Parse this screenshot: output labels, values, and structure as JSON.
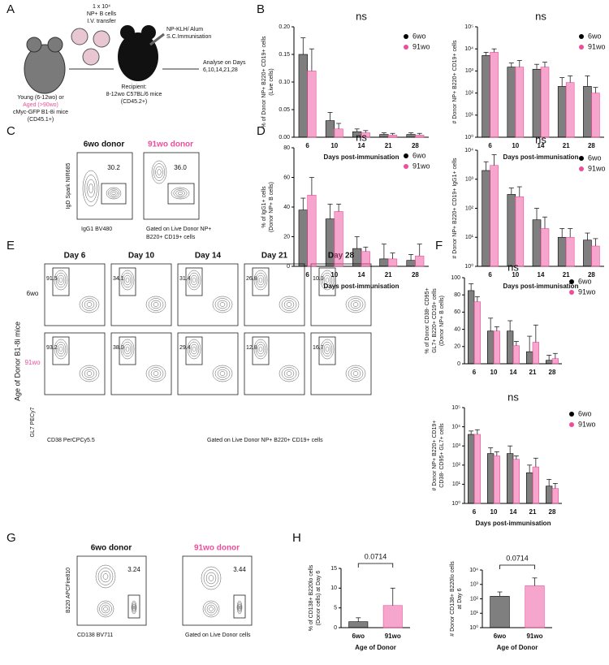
{
  "figure": {
    "panel_letters": [
      "A",
      "B",
      "C",
      "D",
      "E",
      "F",
      "G",
      "H"
    ],
    "schematic": {
      "transfer": [
        "1 x 10⁴",
        "NP+ B cells",
        "I.V. transfer"
      ],
      "immunisation": [
        "NP-KLH/ Alum",
        "S.C.Immunisation"
      ],
      "analyse": [
        "Analyse on Days",
        "6,10,14,21,28"
      ],
      "donor": [
        "Young (6-12wo) or",
        "Aged (>90wo)",
        "cMyc-GFP B1-8i mice",
        "(CD45.1+)"
      ],
      "recipient": [
        "Recipient:",
        "8-12wo C57BL/6 mice",
        "(CD45.2+)"
      ]
    },
    "flow_c": {
      "titles": [
        "6wo donor",
        "91wo donor"
      ],
      "gates": [
        "30.2",
        "36.0"
      ],
      "y_axis": "IgD Spark NIR685",
      "x_axis": "IgG1 BV480",
      "gating": [
        "Gated on Live Donor NP+",
        "B220+ CD19+ cells"
      ]
    },
    "flow_e": {
      "days": [
        "Day 6",
        "Day 10",
        "Day 14",
        "Day 21",
        "Day 28"
      ],
      "rows": [
        "6wo",
        "91wo"
      ],
      "gates": [
        [
          "91.5",
          "34.1",
          "31.4",
          "26.8",
          "10.0"
        ],
        [
          "93.2",
          "38.0",
          "29.4",
          "12.8",
          "16.7"
        ]
      ],
      "row_title": "Age of Donor B1-8i mice",
      "y_axis": "GL7 PECy7",
      "x_axis": "CD38 PerCPCy5.5",
      "gating": "Gated on Live Donor NP+ B220+ CD19+ cells"
    },
    "flow_g": {
      "titles": [
        "6wo donor",
        "91wo donor"
      ],
      "gates": [
        "3.24",
        "3.44"
      ],
      "y_axis": "B220 APCFire810",
      "x_axis": "CD138 BV711",
      "gating": "Gated on Live Donor cells"
    }
  },
  "chart_data": [
    {
      "type": "bar",
      "title": "ns",
      "ylabel": [
        "% of Donor NP+ B220+ CD19+ cells",
        "(Live cells)"
      ],
      "xlabel": "Days post-immunisation",
      "categories": [
        "6",
        "10",
        "14",
        "21",
        "28"
      ],
      "ylim": [
        0,
        0.2
      ],
      "yticks": [
        {
          "value": 0,
          "label": "0.00"
        },
        0.05,
        {
          "value": 0.1,
          "label": "0.10"
        },
        0.15,
        {
          "value": 0.2,
          "label": "0.20"
        }
      ],
      "series": [
        {
          "name": "6wo",
          "color": "#000000",
          "values": [
            0.15,
            0.03,
            0.01,
            0.005,
            0.005
          ],
          "errors": [
            0.03,
            0.015,
            0.005,
            0.003,
            0.003
          ]
        },
        {
          "name": "91wo",
          "color": "#ee4d9b",
          "values": [
            0.12,
            0.015,
            0.008,
            0.004,
            0.004
          ],
          "errors": [
            0.04,
            0.01,
            0.004,
            0.003,
            0.003
          ]
        }
      ]
    },
    {
      "type": "bar",
      "title": "ns",
      "ylabel": [
        "# Donor NP+ B220+ CD19+ cells"
      ],
      "xlabel": "Days post-immunisation",
      "log": true,
      "categories": [
        "6",
        "10",
        "14",
        "21",
        "28"
      ],
      "ylim": [
        1,
        100000
      ],
      "yticks": [
        {
          "value": 1,
          "label": "10⁰"
        },
        {
          "value": 10,
          "label": "10¹"
        },
        {
          "value": 100,
          "label": "10²"
        },
        {
          "value": 1000,
          "label": "10³"
        },
        {
          "value": 10000,
          "label": "10⁴"
        },
        {
          "value": 100000,
          "label": "10⁵"
        }
      ],
      "series": [
        {
          "name": "6wo",
          "color": "#000000",
          "values": [
            5000,
            1500,
            1200,
            200,
            200
          ],
          "errors": [
            2000,
            800,
            800,
            300,
            400
          ]
        },
        {
          "name": "91wo",
          "color": "#ee4d9b",
          "values": [
            7000,
            1500,
            1500,
            300,
            100
          ],
          "errors": [
            3000,
            1500,
            1000,
            300,
            80
          ]
        }
      ]
    },
    {
      "type": "bar",
      "title": "ns",
      "ylabel": [
        "% of IgG1+ cells",
        "(Donor NP+ B cells)"
      ],
      "xlabel": "Days post-immunisation",
      "categories": [
        "6",
        "10",
        "14",
        "21",
        "28"
      ],
      "ylim": [
        0,
        80
      ],
      "yticks": [
        0,
        20,
        40,
        60,
        80
      ],
      "series": [
        {
          "name": "6wo",
          "color": "#000000",
          "values": [
            38,
            32,
            12,
            5,
            4
          ],
          "errors": [
            8,
            10,
            8,
            10,
            4
          ]
        },
        {
          "name": "91wo",
          "color": "#ee4d9b",
          "values": [
            48,
            37,
            10,
            5,
            7
          ],
          "errors": [
            12,
            5,
            3,
            4,
            8
          ]
        }
      ]
    },
    {
      "type": "bar",
      "title": "ns",
      "ylabel": [
        "# Donor NP+ B220+ CD19+ IgG1+ cells"
      ],
      "xlabel": "Days post-immunisation",
      "log": true,
      "categories": [
        "6",
        "10",
        "14",
        "21",
        "28"
      ],
      "ylim": [
        1,
        10000
      ],
      "yticks": [
        {
          "value": 1,
          "label": "10⁰"
        },
        {
          "value": 10,
          "label": "10¹"
        },
        {
          "value": 100,
          "label": "10²"
        },
        {
          "value": 1000,
          "label": "10³"
        },
        {
          "value": 10000,
          "label": "10⁴"
        }
      ],
      "series": [
        {
          "name": "6wo",
          "color": "#000000",
          "values": [
            2000,
            300,
            40,
            10,
            8
          ],
          "errors": [
            2000,
            200,
            60,
            10,
            6
          ]
        },
        {
          "name": "91wo",
          "color": "#ee4d9b",
          "values": [
            3000,
            250,
            20,
            10,
            5
          ],
          "errors": [
            4000,
            300,
            30,
            10,
            4
          ]
        }
      ]
    },
    {
      "type": "bar",
      "title": "ns",
      "ylabel": [
        "% of Donor CD38- CD95+",
        "GL7+ B220+ CD19+ cells",
        "(Donor NP+ B cells)"
      ],
      "xlabel": "",
      "categories": [
        "6",
        "10",
        "14",
        "21",
        "28"
      ],
      "ylim": [
        0,
        100
      ],
      "yticks": [
        0,
        20,
        40,
        60,
        80,
        100
      ],
      "series": [
        {
          "name": "6wo",
          "color": "#000000",
          "values": [
            85,
            38,
            38,
            14,
            4
          ],
          "errors": [
            8,
            15,
            12,
            18,
            6
          ]
        },
        {
          "name": "91wo",
          "color": "#ee4d9b",
          "values": [
            72,
            38,
            21,
            25,
            6
          ],
          "errors": [
            6,
            5,
            5,
            20,
            6
          ]
        }
      ]
    },
    {
      "type": "bar",
      "title": "ns",
      "ylabel": [
        "# Donor NP+ B220+ CD19+",
        "CD38- CD95+ GL7+ cells"
      ],
      "xlabel": "Days post-immunisation",
      "log": true,
      "categories": [
        "6",
        "10",
        "14",
        "21",
        "28"
      ],
      "ylim": [
        1,
        100000
      ],
      "yticks": [
        {
          "value": 1,
          "label": "10⁰"
        },
        {
          "value": 10,
          "label": "10¹"
        },
        {
          "value": 100,
          "label": "10²"
        },
        {
          "value": 1000,
          "label": "10³"
        },
        {
          "value": 10000,
          "label": "10⁴"
        },
        {
          "value": 100000,
          "label": "10⁵"
        }
      ],
      "series": [
        {
          "name": "6wo",
          "color": "#000000",
          "values": [
            4000,
            400,
            400,
            40,
            8
          ],
          "errors": [
            2000,
            400,
            600,
            60,
            10
          ]
        },
        {
          "name": "91wo",
          "color": "#ee4d9b",
          "values": [
            4000,
            300,
            200,
            80,
            6
          ],
          "errors": [
            3000,
            200,
            100,
            150,
            5
          ]
        }
      ]
    },
    {
      "type": "bar",
      "ylabel": [
        "% of CD138+ B220lo cells",
        "(Donor cells) at Day 6"
      ],
      "xlabel": "Age of Donor",
      "annotation": "0.0714",
      "categories": [
        "6wo",
        "91wo"
      ],
      "ylim": [
        0,
        15
      ],
      "yticks": [
        0,
        5,
        10,
        15
      ],
      "values": [
        1.5,
        5.6
      ],
      "errors": [
        1,
        4.4
      ],
      "colors": [
        "#000000",
        "#ee4d9b"
      ]
    },
    {
      "type": "bar",
      "ylabel": [
        "# Donor CD138+ B220lo cells",
        "at Day 6"
      ],
      "xlabel": "Age of Donor",
      "annotation": "0.0714",
      "log": true,
      "categories": [
        "6wo",
        "91wo"
      ],
      "ylim": [
        1,
        10000
      ],
      "yticks": [
        {
          "value": 1,
          "label": "10⁰"
        },
        {
          "value": 10,
          "label": "10¹"
        },
        {
          "value": 100,
          "label": "10²"
        },
        {
          "value": 1000,
          "label": "10³"
        },
        {
          "value": 10000,
          "label": "10⁴"
        }
      ],
      "values": [
        150,
        800
      ],
      "errors": [
        150,
        2000
      ],
      "colors": [
        "#000000",
        "#ee4d9b"
      ]
    }
  ]
}
